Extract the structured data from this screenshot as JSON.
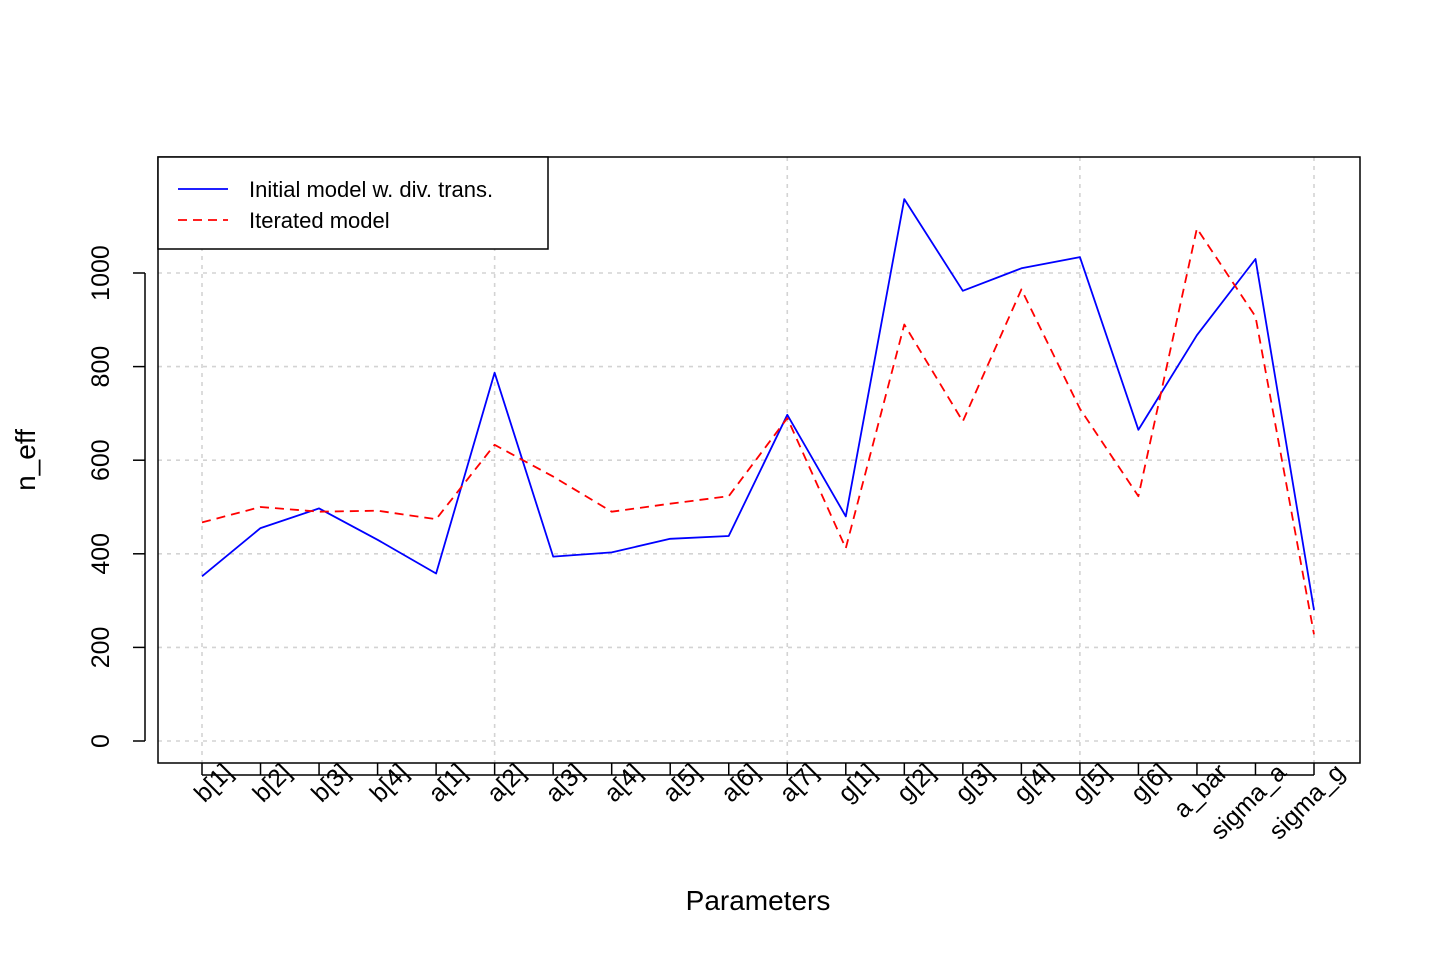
{
  "chart_data": {
    "type": "line",
    "title": "",
    "xlabel": "Parameters",
    "ylabel": "n_eff",
    "categories": [
      "b[1]",
      "b[2]",
      "b[3]",
      "b[4]",
      "a[1]",
      "a[2]",
      "a[3]",
      "a[4]",
      "a[5]",
      "a[6]",
      "a[7]",
      "g[1]",
      "g[2]",
      "g[3]",
      "g[4]",
      "g[5]",
      "g[6]",
      "a_bar",
      "sigma_a",
      "sigma_g"
    ],
    "yticks": [
      0,
      200,
      400,
      600,
      800,
      1000
    ],
    "ylim": [
      -45,
      1250
    ],
    "grid": true,
    "legend_position": "top-left",
    "series": [
      {
        "name": "Initial model w. div. trans.",
        "color": "#0000ff",
        "dash": "solid",
        "values": [
          352,
          455,
          497,
          430,
          358,
          787,
          394,
          403,
          432,
          438,
          697,
          480,
          1158,
          962,
          1010,
          1034,
          665,
          867,
          1030,
          280
        ]
      },
      {
        "name": "Iterated model",
        "color": "#ff0000",
        "dash": "dashed",
        "values": [
          467,
          500,
          490,
          492,
          474,
          633,
          565,
          490,
          507,
          523,
          690,
          412,
          890,
          683,
          965,
          710,
          523,
          1095,
          907,
          228
        ]
      }
    ]
  }
}
